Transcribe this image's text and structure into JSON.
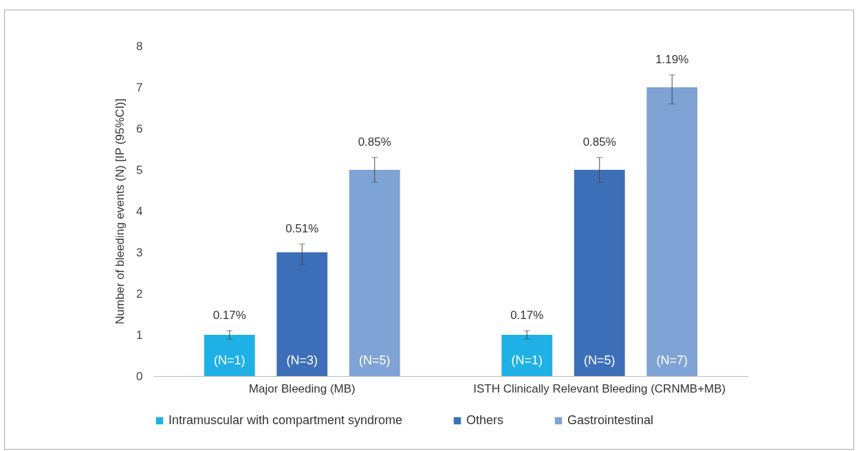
{
  "chart_data": {
    "type": "bar",
    "ylabel": "Number of bleeding events (N) [IP (95%CI)]",
    "categories": [
      "Major Bleeding (MB)",
      "ISTH Clinically Relevant Bleeding (CRNMB+MB)"
    ],
    "series": [
      {
        "name": "Intramuscular with compartment syndrome",
        "color": "#1fb1e6",
        "values": [
          1,
          1
        ],
        "errors": [
          [
            0.9,
            1.1
          ],
          [
            0.9,
            1.1
          ]
        ],
        "value_labels": [
          "(N=1)",
          "(N=1)"
        ]
      },
      {
        "name": "Others",
        "color": "#3d6fb8",
        "values": [
          3,
          5
        ],
        "errors": [
          [
            2.7,
            3.2
          ],
          [
            4.7,
            5.3
          ]
        ],
        "value_labels": [
          "(N=3)",
          "(N=5)"
        ]
      },
      {
        "name": "Gastrointestinal",
        "color": "#7fa3d4",
        "values": [
          5,
          7
        ],
        "errors": [
          [
            4.7,
            5.3
          ],
          [
            6.6,
            7.3
          ]
        ],
        "value_labels": [
          "(N=5)",
          "(N=7)"
        ]
      }
    ],
    "annotations": [
      "0.17%",
      "0.17%",
      "0.51%",
      "0.85%",
      "0.85%",
      "1.19%"
    ],
    "ylim": [
      0,
      8
    ],
    "yticks": [
      0,
      1,
      2,
      3,
      4,
      5,
      6,
      7,
      8
    ],
    "legend": "bottom"
  }
}
